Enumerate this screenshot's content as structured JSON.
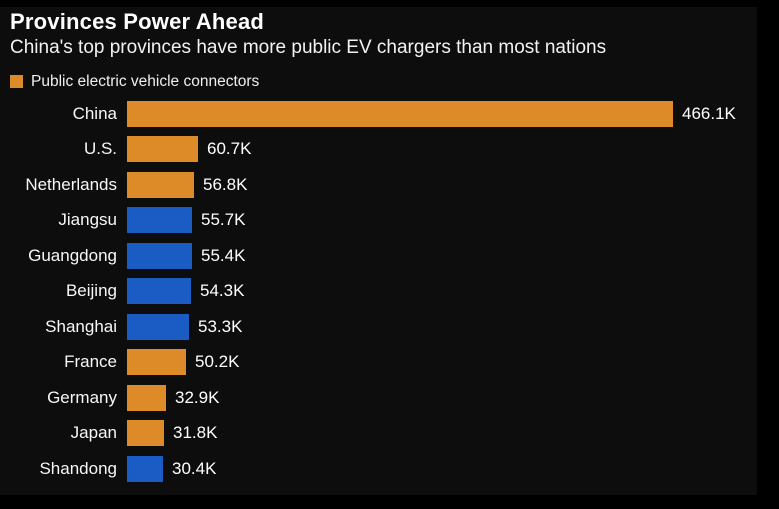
{
  "page": {
    "background": "#000000",
    "panel_background": "#0d0d0d"
  },
  "header": {
    "title": "Provinces Power Ahead",
    "subtitle": "China's top provinces have more public EV chargers than most nations"
  },
  "legend": {
    "label": "Public electric vehicle connectors",
    "swatch_color": "#dd8a28"
  },
  "colors": {
    "orange": "#dd8a28",
    "blue": "#1a5bc4",
    "text": "#ffffff"
  },
  "chart_data": {
    "type": "bar",
    "orientation": "horizontal",
    "title": "Provinces Power Ahead",
    "subtitle": "China's top provinces have more public EV chargers than most nations",
    "legend_entries": [
      "Public electric vehicle connectors"
    ],
    "legend_position": "top-left",
    "grid": false,
    "unit": "K (thousands of connectors)",
    "xlim": [
      0,
      466.1
    ],
    "categories": [
      "China",
      "U.S.",
      "Netherlands",
      "Jiangsu",
      "Guangdong",
      "Beijing",
      "Shanghai",
      "France",
      "Germany",
      "Japan",
      "Shandong"
    ],
    "values": [
      466.1,
      60.7,
      56.8,
      55.7,
      55.4,
      54.3,
      53.3,
      50.2,
      32.9,
      31.8,
      30.4
    ],
    "value_labels": [
      "466.1K",
      "60.7K",
      "56.8K",
      "55.7K",
      "55.4K",
      "54.3K",
      "53.3K",
      "50.2K",
      "32.9K",
      "31.8K",
      "30.4K"
    ],
    "bar_color_keys": [
      "orange",
      "orange",
      "orange",
      "blue",
      "blue",
      "blue",
      "blue",
      "orange",
      "orange",
      "orange",
      "blue"
    ]
  }
}
